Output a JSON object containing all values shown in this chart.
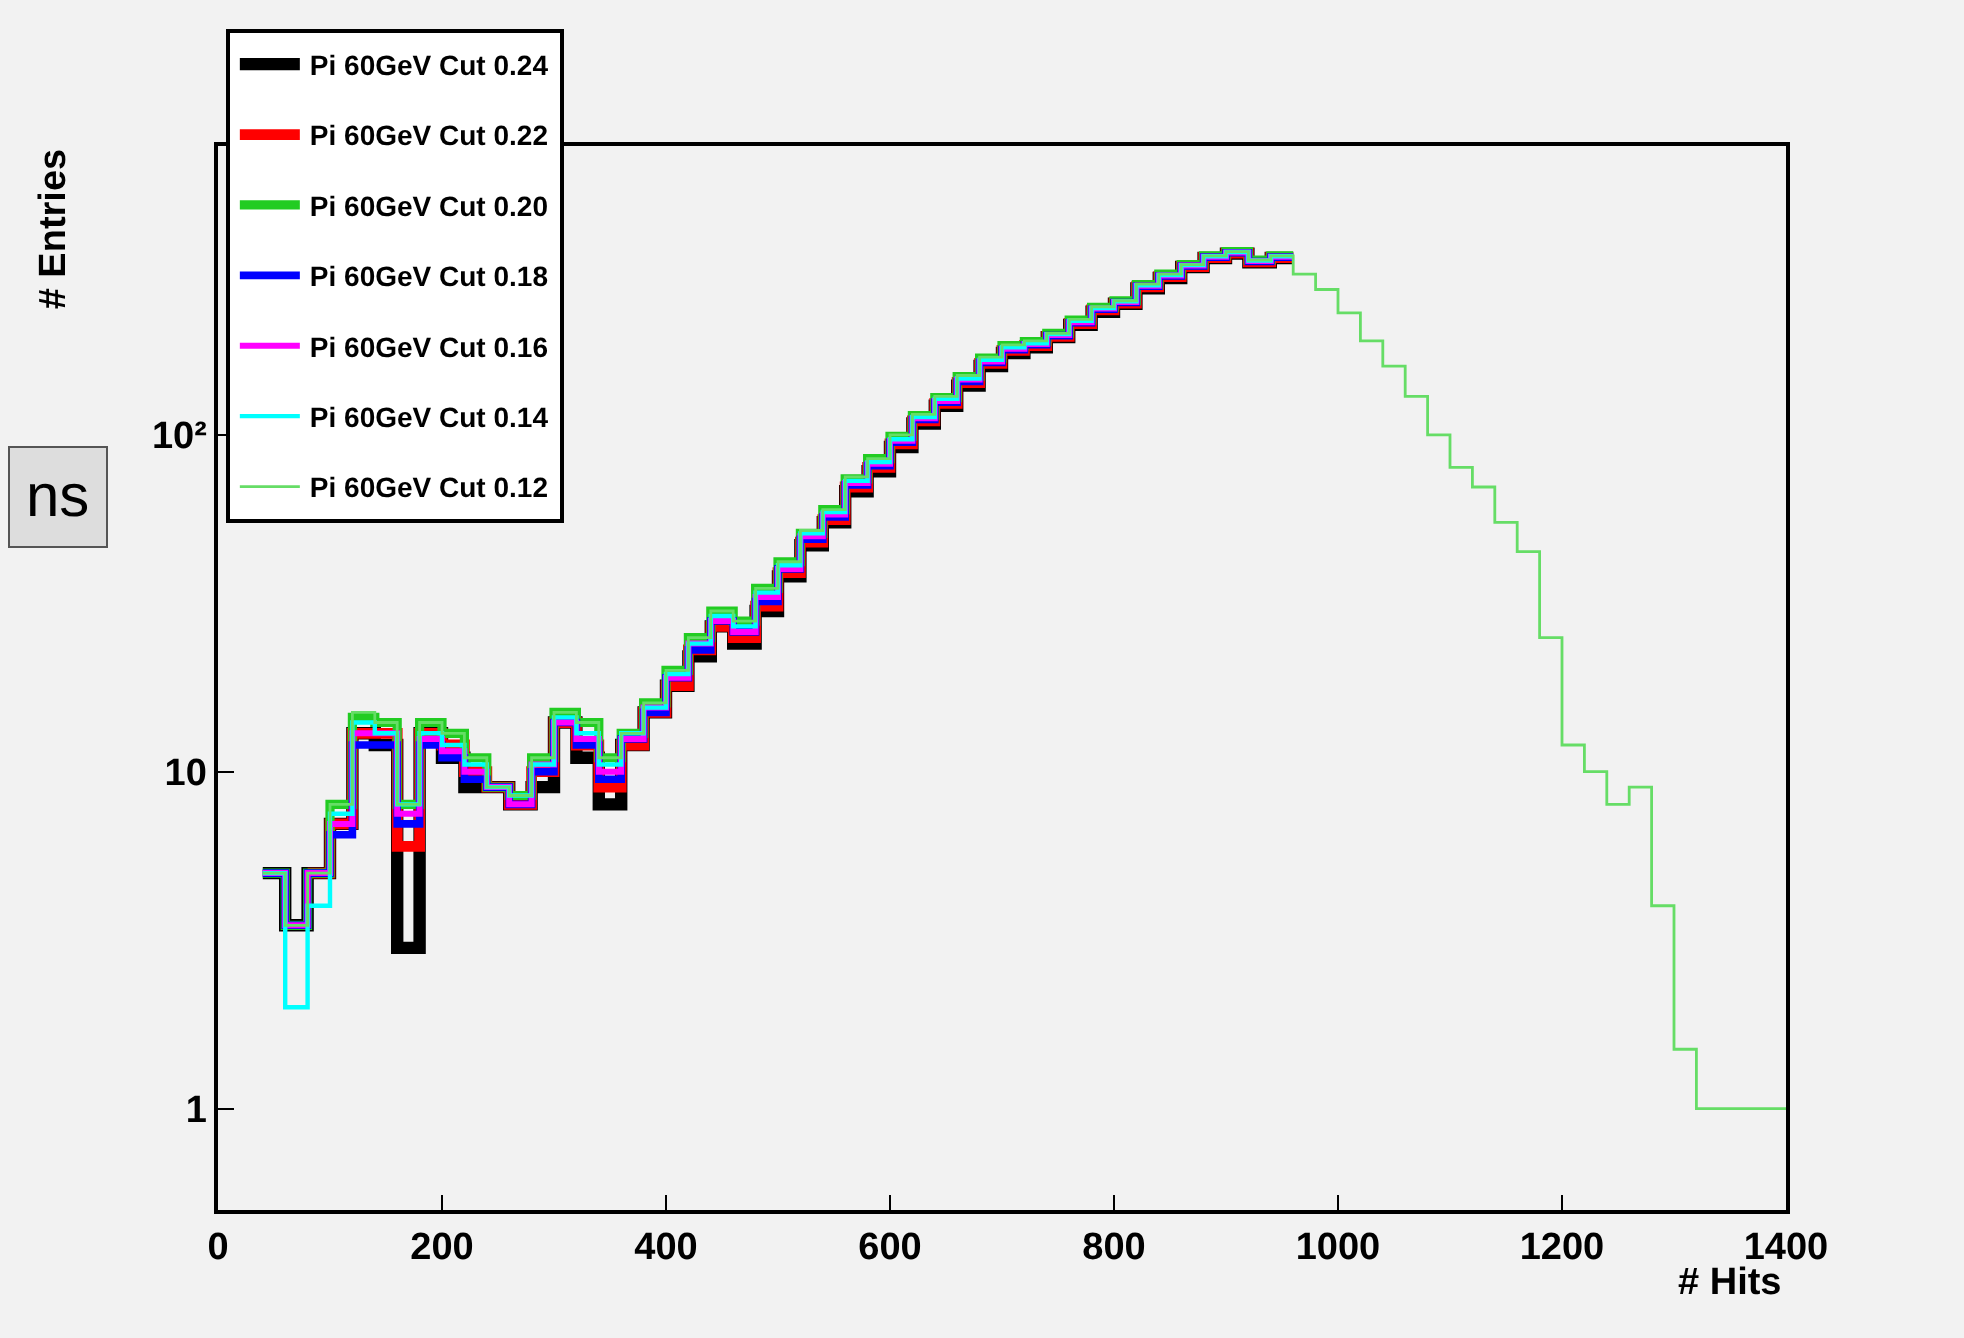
{
  "chart_data": {
    "type": "step",
    "xlabel": "# Hits",
    "ylabel": "# Entries",
    "x": [
      40,
      60,
      80,
      100,
      120,
      140,
      160,
      180,
      200,
      220,
      240,
      260,
      280,
      300,
      320,
      340,
      360,
      380,
      400,
      420,
      440,
      460,
      480,
      500,
      520,
      540,
      560,
      580,
      600,
      620,
      640,
      660,
      680,
      700,
      720,
      740,
      760,
      780,
      800,
      820,
      840,
      860,
      880,
      900,
      920,
      940,
      960,
      980,
      1000,
      1020,
      1040,
      1060,
      1080,
      1100,
      1120,
      1140,
      1160,
      1180,
      1200,
      1220,
      1240,
      1260,
      1280,
      1300,
      1320,
      1340,
      1360,
      1380,
      1400
    ],
    "series": [
      {
        "name": "Pi 60GeV Cut 0.24",
        "color": "#000000",
        "x": [
          40,
          60,
          80,
          100,
          120,
          140,
          160,
          180,
          200,
          220,
          240,
          260,
          280,
          300,
          320,
          340,
          360,
          380,
          400,
          420,
          440,
          460,
          480,
          500,
          520,
          540,
          560,
          580,
          600,
          620,
          640,
          660,
          680,
          700,
          720,
          740,
          760,
          780,
          800,
          820,
          840,
          860,
          880,
          900,
          920,
          940,
          960
        ],
        "values": [
          5,
          3.5,
          5,
          7,
          13,
          12,
          3,
          13,
          11,
          9,
          9,
          8,
          9,
          14,
          11,
          8,
          12,
          15,
          18,
          22,
          27,
          24,
          30,
          38,
          47,
          55,
          68,
          78,
          92,
          108,
          122,
          140,
          160,
          175,
          182,
          195,
          212,
          232,
          245,
          272,
          292,
          315,
          335,
          345,
          325,
          335,
          335
        ]
      },
      {
        "name": "Pi 60GeV Cut 0.22",
        "color": "#ff0000",
        "x": [
          80,
          100,
          120,
          140,
          160,
          180,
          200,
          220,
          240,
          260,
          280,
          300,
          320,
          340,
          360,
          380,
          400,
          420,
          440,
          460,
          480,
          500,
          520,
          540,
          560,
          580,
          600,
          620,
          640,
          660,
          680,
          700,
          720,
          740,
          760,
          780,
          800,
          820,
          840,
          860,
          880,
          900,
          920,
          940,
          960
        ],
        "values": [
          5,
          7,
          13,
          13,
          6,
          13,
          12,
          10,
          9,
          8,
          10,
          14,
          12,
          9,
          12,
          15,
          18,
          23,
          27,
          25,
          31,
          39,
          48,
          56,
          70,
          80,
          94,
          110,
          124,
          143,
          163,
          178,
          184,
          196,
          214,
          235,
          246,
          275,
          295,
          316,
          336,
          346,
          326,
          336,
          336
        ]
      },
      {
        "name": "Pi 60GeV Cut 0.20",
        "color": "#22cc22",
        "x": [
          40,
          60,
          80,
          100,
          120,
          140,
          160,
          180,
          200,
          220,
          240,
          260,
          280,
          300,
          320,
          340,
          360,
          380,
          400,
          420,
          440,
          460,
          480,
          500,
          520,
          540,
          560,
          580,
          600,
          620,
          640,
          660,
          680,
          700,
          720,
          740,
          760,
          780,
          800,
          820,
          840,
          860,
          880,
          900,
          920,
          940,
          960
        ],
        "values": [
          5,
          3.5,
          5,
          8,
          14.5,
          14,
          8,
          14,
          13,
          11,
          9,
          8.5,
          11,
          15,
          14,
          11,
          13,
          16,
          20,
          25,
          30,
          28,
          35,
          42,
          51,
          60,
          74,
          85,
          99,
          114,
          129,
          149,
          169,
          184,
          189,
          200,
          219,
          239,
          250,
          279,
          300,
          320,
          340,
          350,
          330,
          340,
          340
        ]
      },
      {
        "name": "Pi 60GeV Cut 0.18",
        "color": "#0000ff",
        "x": [
          40,
          60,
          80,
          100,
          120,
          140,
          160,
          180,
          200,
          220,
          240,
          260,
          280,
          300,
          320,
          340,
          360,
          380,
          400,
          420,
          440,
          460,
          480,
          500,
          520,
          540,
          560,
          580,
          600,
          620,
          640,
          660,
          680,
          700,
          720,
          740,
          760,
          780,
          800,
          820,
          840,
          860,
          880,
          900,
          920,
          940,
          960
        ],
        "values": [
          5,
          3.5,
          5,
          6.5,
          12,
          12,
          7,
          12,
          11,
          9.5,
          9,
          8,
          10,
          14,
          12,
          9.5,
          12.5,
          15,
          19,
          23,
          28,
          26,
          32,
          40,
          49,
          57,
          71,
          81,
          95,
          111,
          125,
          144,
          164,
          179,
          185,
          197,
          215,
          236,
          247,
          276,
          296,
          317,
          337,
          347,
          327,
          337,
          337
        ]
      },
      {
        "name": "Pi 60GeV Cut 0.16",
        "color": "#ff00ff",
        "x": [
          40,
          60,
          80,
          100,
          120,
          140,
          160,
          180,
          200,
          220,
          240,
          260,
          280,
          300,
          320,
          340,
          360,
          380,
          400,
          420,
          440,
          460,
          480,
          500,
          520,
          540,
          560,
          580,
          600,
          620,
          640,
          660,
          680,
          700,
          720,
          740,
          760,
          780,
          800,
          820,
          840,
          860,
          880,
          900,
          920,
          940,
          960
        ],
        "values": [
          5,
          3.5,
          5,
          7,
          13,
          13,
          7.5,
          12.5,
          11.5,
          10,
          9,
          8,
          10.5,
          14,
          12.5,
          10,
          12.5,
          15.5,
          19,
          24,
          28,
          26,
          33,
          40,
          50,
          58,
          72,
          82,
          96,
          112,
          126,
          146,
          165,
          180,
          186,
          198,
          216,
          237,
          248,
          277,
          297,
          318,
          338,
          348,
          328,
          338,
          338
        ]
      },
      {
        "name": "Pi 60GeV Cut 0.14",
        "color": "#00ffff",
        "x": [
          40,
          60,
          80,
          100,
          120,
          140,
          160,
          180,
          200,
          220,
          240,
          260,
          280,
          300,
          320,
          340,
          360,
          380,
          400,
          420,
          440,
          460,
          480,
          500,
          520,
          540,
          560,
          580,
          600,
          620,
          640,
          660,
          680,
          700,
          720,
          740,
          760,
          780,
          800,
          820,
          840,
          860,
          880,
          900,
          920,
          940,
          960
        ],
        "values": [
          5,
          2,
          4,
          7.5,
          14,
          13,
          8,
          13,
          12,
          10.5,
          9,
          8.5,
          10.5,
          14.5,
          13,
          10.5,
          13,
          15.5,
          19.5,
          24,
          29,
          27,
          34,
          41,
          51,
          59,
          73,
          83,
          97,
          113,
          128,
          147,
          167,
          182,
          187,
          199,
          218,
          238,
          249,
          278,
          298,
          319,
          339,
          349,
          329,
          339,
          339
        ]
      },
      {
        "name": "Pi 60GeV Cut 0.12",
        "color": "#66dd66",
        "values": [
          5,
          3.5,
          5,
          8,
          15,
          14,
          8,
          14,
          13,
          11,
          9,
          8.5,
          11,
          15,
          14,
          11,
          13,
          16,
          20,
          25,
          30,
          28,
          35,
          42,
          52,
          60,
          75,
          85,
          100,
          115,
          130,
          150,
          170,
          185,
          190,
          200,
          220,
          240,
          250,
          280,
          300,
          320,
          340,
          350,
          330,
          340,
          300,
          270,
          230,
          190,
          160,
          130,
          100,
          80,
          70,
          55,
          45,
          25,
          12,
          10,
          8,
          9,
          4,
          1.5,
          1,
          1,
          1,
          1,
          1
        ]
      }
    ],
    "log": "y",
    "xlim": [
      0,
      1400
    ],
    "xticks": [
      0,
      200,
      400,
      600,
      800,
      1000,
      1200,
      1400
    ],
    "ylim": [
      0.5,
      720
    ],
    "yticks": [
      1,
      10,
      {
        "value": 100,
        "label": "10²"
      }
    ],
    "grid": false,
    "legend": "top left",
    "annotations": [
      "ns"
    ]
  }
}
